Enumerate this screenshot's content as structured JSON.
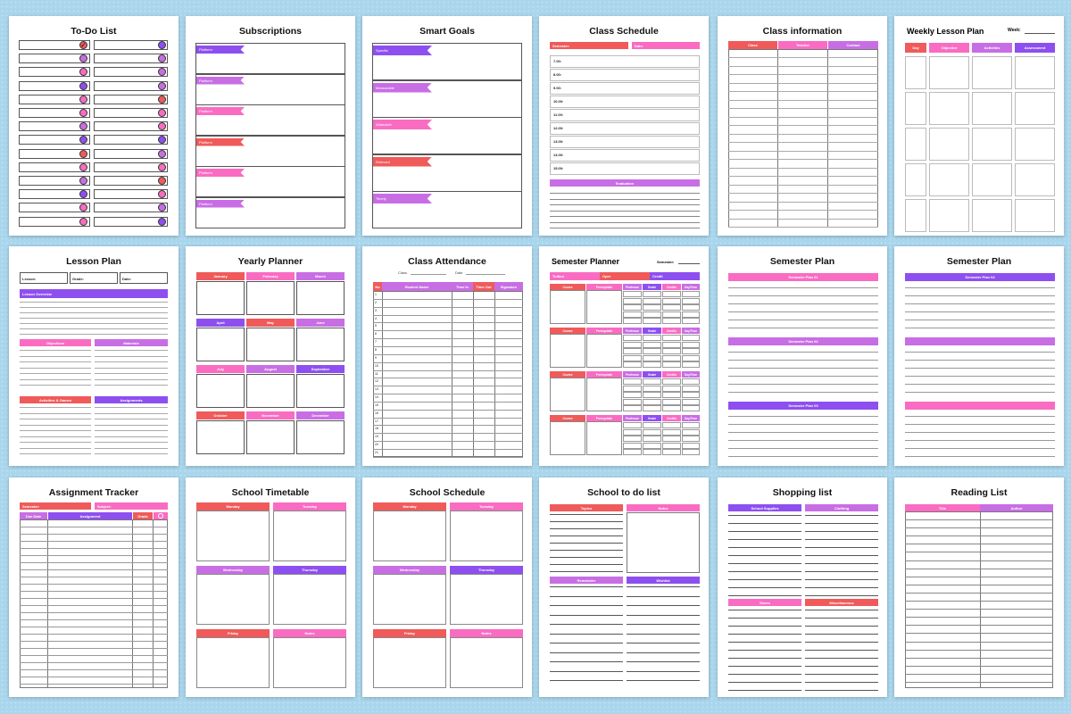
{
  "colors": {
    "red": "#f05a5a",
    "pink": "#f96cc2",
    "violet": "#c86ee4",
    "purple": "#8e4ff0"
  },
  "todo": {
    "title": "To-Do List",
    "dots_left": [
      "red-check",
      "violet",
      "pink",
      "purple",
      "pink",
      "pink",
      "violet",
      "purple",
      "red",
      "pink",
      "violet",
      "purple",
      "pink",
      "pink"
    ],
    "dots_right": [
      "purple",
      "violet",
      "violet",
      "violet",
      "red",
      "pink",
      "pink",
      "purple",
      "violet",
      "pink",
      "red",
      "pink",
      "violet",
      "purple"
    ]
  },
  "subs": {
    "title": "Subscriptions",
    "items": [
      "Platform",
      "Platform",
      "Platform",
      "Platform",
      "Platform",
      "Platform"
    ]
  },
  "smart": {
    "title": "Smart Goals",
    "items": [
      "Specific",
      "Measurable",
      "Attainable",
      "Relevant",
      "Timely"
    ]
  },
  "schedule": {
    "title": "Class Schedule",
    "semester": "Semester:",
    "date": "Date:",
    "times": [
      "7.00:",
      "8.00:",
      "9.00:",
      "10.00:",
      "11.00:",
      "12.00:",
      "13.00:",
      "14.00:",
      "15.00:"
    ],
    "evaluation": "Evaluation"
  },
  "classinfo": {
    "title": "Class information",
    "cols": [
      "Class",
      "Teacher",
      "Contact"
    ]
  },
  "weekly": {
    "title": "Weekly Lesson Plan",
    "week": "Week:",
    "cols": [
      "Day",
      "Objective",
      "Activities",
      "Assessment"
    ]
  },
  "lesson": {
    "title": "Lesson Plan",
    "fields": [
      "Lesson:",
      "Grade:",
      "Date:"
    ],
    "overview": "Lesson Overview",
    "objectives": "Objectives",
    "materials": "Materials",
    "activities": "Activities & Games",
    "assignments": "Assignments"
  },
  "yearly": {
    "title": "Yearly  Planner",
    "months": [
      "January",
      "February",
      "March",
      "April",
      "May",
      "June",
      "July",
      "August",
      "September",
      "October",
      "November",
      "December"
    ]
  },
  "attendance": {
    "title": "Class Attendance",
    "class": "Class",
    "date": "Date",
    "cols": [
      "No",
      "Student Name",
      "Time In",
      "Time Out",
      "Signature"
    ],
    "rows": 21
  },
  "semplanner": {
    "title": "Semester Planner",
    "semester": "Semester:",
    "tuition": "Tuition",
    "oper": "Oper",
    "credit": "Credit",
    "cols": [
      "Course",
      "Prerequisite",
      "Professor",
      "Grade",
      "Credits",
      "Day/Time"
    ]
  },
  "semplan1": {
    "title": "Semester Plan",
    "sections": [
      "Semester Plan 01",
      "Semester Plan 02",
      "Semester Plan 03"
    ]
  },
  "semplan2": {
    "title": "Semester Plan",
    "sections": [
      "Semester Plan 04",
      "",
      ""
    ]
  },
  "assign": {
    "title": "Assignment Tracker",
    "semester": "Semester:",
    "subject": "Subject:",
    "cols": [
      "Due Date",
      "Assignment",
      "Grade"
    ]
  },
  "timetable": {
    "title": "School Timetable",
    "days": [
      "Monday",
      "Tuesday",
      "Wednesday",
      "Thursday",
      "Friday",
      "Notes"
    ]
  },
  "sched2": {
    "title": "School Schedule",
    "days": [
      "Monday",
      "Tuesday",
      "Wednesday",
      "Thursday",
      "Friday",
      "Notes"
    ]
  },
  "stodo": {
    "title": "School to do list",
    "heads": [
      "Topics",
      "Notes",
      "Remainder",
      "Wishlist"
    ]
  },
  "shop": {
    "title": "Shopping list",
    "heads": [
      "School Supplies",
      "Clothing",
      "Shoes",
      "Miscellaneous"
    ]
  },
  "reading": {
    "title": "Reading List",
    "cols": [
      "Title",
      "Author"
    ]
  }
}
